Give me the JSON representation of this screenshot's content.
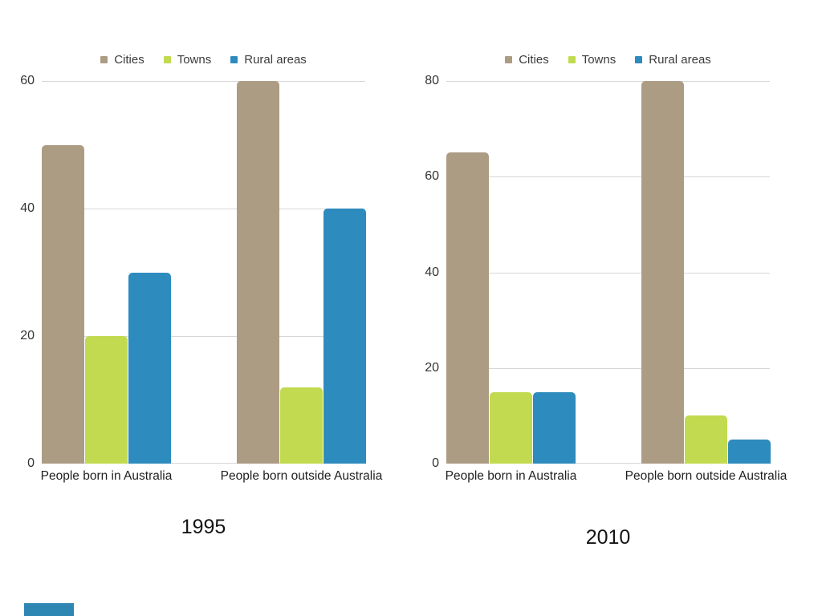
{
  "chart_data": [
    {
      "type": "bar",
      "title": "1995",
      "categories": [
        "People born in Australia",
        "People born outside Australia"
      ],
      "series": [
        {
          "name": "Cities",
          "color": "#ad9c84",
          "values": [
            50,
            60
          ]
        },
        {
          "name": "Towns",
          "color": "#c1da4f",
          "values": [
            20,
            12
          ]
        },
        {
          "name": "Rural areas",
          "color": "#2e8bbe",
          "values": [
            30,
            40
          ]
        }
      ],
      "ylim": [
        0,
        60
      ],
      "y_ticks": [
        0,
        20,
        40,
        60
      ],
      "grid": true,
      "legend_position": "top"
    },
    {
      "type": "bar",
      "title": "2010",
      "categories": [
        "People born in Australia",
        "People born outside Australia"
      ],
      "series": [
        {
          "name": "Cities",
          "color": "#ad9c84",
          "values": [
            65,
            80
          ]
        },
        {
          "name": "Towns",
          "color": "#c1da4f",
          "values": [
            15,
            10
          ]
        },
        {
          "name": "Rural areas",
          "color": "#2e8bbe",
          "values": [
            15,
            5
          ]
        }
      ],
      "ylim": [
        0,
        80
      ],
      "y_ticks": [
        0,
        20,
        40,
        60,
        80
      ],
      "grid": true,
      "legend_position": "top"
    }
  ],
  "legend": {
    "items": [
      {
        "label": "Cities",
        "color": "#ad9c84"
      },
      {
        "label": "Towns",
        "color": "#c1da4f"
      },
      {
        "label": "Rural areas",
        "color": "#2e8bbe"
      }
    ]
  },
  "colors": {
    "background": "#ffffff",
    "grid": "#d8d8d8",
    "tick_text": "#333333",
    "category_text": "#1f1f1f",
    "year_text": "#141414",
    "legend_text": "#3b3b3b",
    "bottom_left_fragment": "#2e86b3"
  }
}
